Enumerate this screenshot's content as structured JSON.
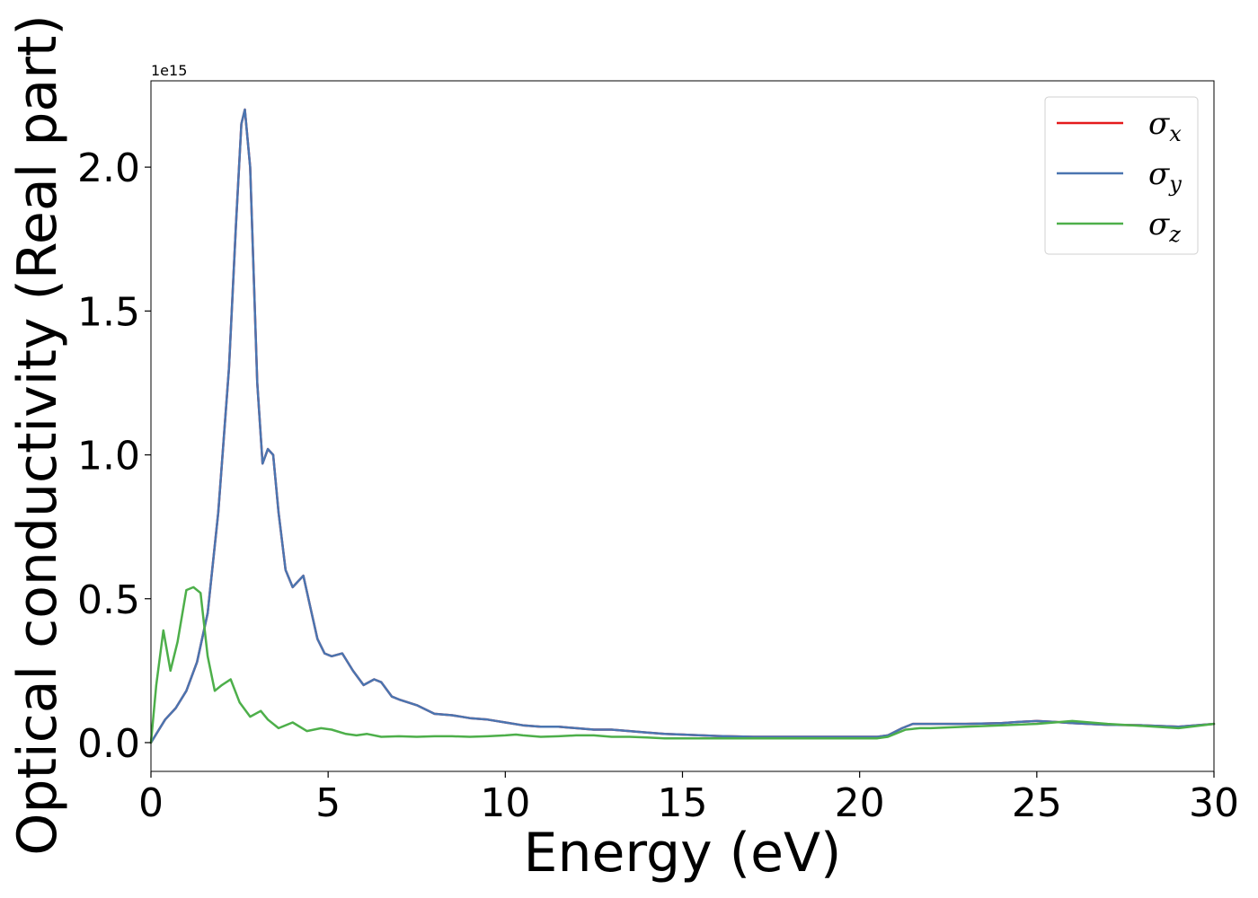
{
  "chart_data": {
    "type": "line",
    "xlabel": "Energy (eV)",
    "ylabel": "Optical conductivity (Real part)",
    "y_offset_label": "1e15",
    "xlim": [
      0,
      30
    ],
    "ylim": [
      -0.1,
      2.3
    ],
    "x_ticks": [
      0,
      5,
      10,
      15,
      20,
      25,
      30
    ],
    "y_ticks": [
      0.0,
      0.5,
      1.0,
      1.5,
      2.0
    ],
    "x_tick_labels": [
      "0",
      "5",
      "10",
      "15",
      "20",
      "25",
      "30"
    ],
    "y_tick_labels": [
      "0.0",
      "0.5",
      "1.0",
      "1.5",
      "2.0"
    ],
    "grid": false,
    "legend_position": "top-right",
    "series": [
      {
        "name": "σx",
        "base": "σ",
        "sub": "x",
        "color": "#e41a1c",
        "x": [
          0,
          0.2,
          0.4,
          0.7,
          1.0,
          1.3,
          1.6,
          1.9,
          2.2,
          2.4,
          2.55,
          2.65,
          2.8,
          3.0,
          3.15,
          3.3,
          3.45,
          3.6,
          3.8,
          4.0,
          4.15,
          4.3,
          4.5,
          4.7,
          4.9,
          5.1,
          5.4,
          5.7,
          6.0,
          6.3,
          6.5,
          6.8,
          7.0,
          7.5,
          8.0,
          8.5,
          9.0,
          9.5,
          10.0,
          10.5,
          11.0,
          11.5,
          12.0,
          12.5,
          13.0,
          13.5,
          14.0,
          14.5,
          15.0,
          16.0,
          17.0,
          18.0,
          19.0,
          20.0,
          20.5,
          20.8,
          21.2,
          21.5,
          22.0,
          23.0,
          24.0,
          24.5,
          25.0,
          25.5,
          26.0,
          27.0,
          28.0,
          29.0,
          30.0
        ],
        "y": [
          0.0,
          0.04,
          0.08,
          0.12,
          0.18,
          0.28,
          0.45,
          0.8,
          1.3,
          1.8,
          2.15,
          2.2,
          2.0,
          1.25,
          0.97,
          1.02,
          1.0,
          0.8,
          0.6,
          0.54,
          0.56,
          0.58,
          0.47,
          0.36,
          0.31,
          0.3,
          0.31,
          0.25,
          0.2,
          0.22,
          0.21,
          0.16,
          0.15,
          0.13,
          0.1,
          0.095,
          0.085,
          0.08,
          0.07,
          0.06,
          0.055,
          0.055,
          0.05,
          0.045,
          0.045,
          0.04,
          0.035,
          0.03,
          0.028,
          0.023,
          0.02,
          0.02,
          0.02,
          0.02,
          0.02,
          0.025,
          0.05,
          0.065,
          0.065,
          0.065,
          0.068,
          0.072,
          0.075,
          0.072,
          0.068,
          0.062,
          0.06,
          0.055,
          0.065
        ]
      },
      {
        "name": "σy",
        "base": "σ",
        "sub": "y",
        "color": "#4a75b0",
        "x": [
          0,
          0.2,
          0.4,
          0.7,
          1.0,
          1.3,
          1.6,
          1.9,
          2.2,
          2.4,
          2.55,
          2.65,
          2.8,
          3.0,
          3.15,
          3.3,
          3.45,
          3.6,
          3.8,
          4.0,
          4.15,
          4.3,
          4.5,
          4.7,
          4.9,
          5.1,
          5.4,
          5.7,
          6.0,
          6.3,
          6.5,
          6.8,
          7.0,
          7.5,
          8.0,
          8.5,
          9.0,
          9.5,
          10.0,
          10.5,
          11.0,
          11.5,
          12.0,
          12.5,
          13.0,
          13.5,
          14.0,
          14.5,
          15.0,
          16.0,
          17.0,
          18.0,
          19.0,
          20.0,
          20.5,
          20.8,
          21.2,
          21.5,
          22.0,
          23.0,
          24.0,
          24.5,
          25.0,
          25.5,
          26.0,
          27.0,
          28.0,
          29.0,
          30.0
        ],
        "y": [
          0.0,
          0.04,
          0.08,
          0.12,
          0.18,
          0.28,
          0.45,
          0.8,
          1.3,
          1.8,
          2.15,
          2.2,
          2.0,
          1.25,
          0.97,
          1.02,
          1.0,
          0.8,
          0.6,
          0.54,
          0.56,
          0.58,
          0.47,
          0.36,
          0.31,
          0.3,
          0.31,
          0.25,
          0.2,
          0.22,
          0.21,
          0.16,
          0.15,
          0.13,
          0.1,
          0.095,
          0.085,
          0.08,
          0.07,
          0.06,
          0.055,
          0.055,
          0.05,
          0.045,
          0.045,
          0.04,
          0.035,
          0.03,
          0.028,
          0.023,
          0.02,
          0.02,
          0.02,
          0.02,
          0.02,
          0.025,
          0.05,
          0.065,
          0.065,
          0.065,
          0.068,
          0.072,
          0.075,
          0.072,
          0.068,
          0.062,
          0.06,
          0.055,
          0.065
        ]
      },
      {
        "name": "σz",
        "base": "σ",
        "sub": "z",
        "color": "#4daf4a",
        "x": [
          0,
          0.15,
          0.35,
          0.55,
          0.75,
          1.0,
          1.2,
          1.4,
          1.6,
          1.8,
          2.0,
          2.25,
          2.5,
          2.8,
          3.1,
          3.3,
          3.6,
          4.0,
          4.4,
          4.8,
          5.1,
          5.5,
          5.8,
          6.1,
          6.5,
          7.0,
          7.5,
          8.0,
          8.5,
          9.0,
          9.5,
          10.0,
          10.3,
          10.5,
          11.0,
          11.5,
          12.0,
          12.5,
          13.0,
          13.5,
          14.0,
          14.5,
          15.0,
          16.0,
          17.0,
          18.0,
          19.0,
          20.0,
          20.5,
          20.8,
          21.3,
          21.7,
          22.0,
          23.0,
          24.0,
          25.0,
          26.0,
          27.0,
          28.0,
          29.0,
          30.0
        ],
        "y": [
          0.0,
          0.2,
          0.39,
          0.25,
          0.35,
          0.53,
          0.54,
          0.52,
          0.3,
          0.18,
          0.2,
          0.22,
          0.14,
          0.09,
          0.11,
          0.08,
          0.05,
          0.07,
          0.04,
          0.05,
          0.045,
          0.03,
          0.025,
          0.03,
          0.02,
          0.022,
          0.02,
          0.022,
          0.022,
          0.02,
          0.022,
          0.025,
          0.028,
          0.025,
          0.02,
          0.022,
          0.025,
          0.025,
          0.02,
          0.02,
          0.018,
          0.015,
          0.015,
          0.015,
          0.015,
          0.015,
          0.015,
          0.015,
          0.015,
          0.02,
          0.045,
          0.05,
          0.05,
          0.055,
          0.06,
          0.065,
          0.075,
          0.065,
          0.058,
          0.05,
          0.065
        ]
      }
    ]
  }
}
